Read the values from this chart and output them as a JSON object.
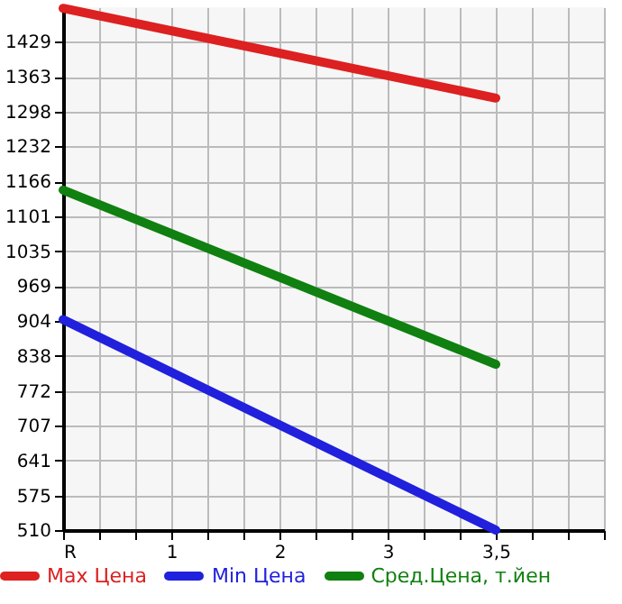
{
  "chart_data": {
    "type": "line",
    "categories": [
      "R",
      "1",
      "2",
      "3",
      "3,5"
    ],
    "series": [
      {
        "name": "Max Цена",
        "color": "#dd2020",
        "values": [
          1492,
          null,
          null,
          null,
          1323
        ]
      },
      {
        "name": "Min Цена",
        "color": "#2020dd",
        "values": [
          906,
          null,
          null,
          null,
          510
        ]
      },
      {
        "name": "Сред.Цена, т.йен",
        "color": "#108010",
        "values": [
          1150,
          null,
          null,
          null,
          822
        ]
      }
    ],
    "ylim": [
      510,
      1494
    ],
    "yticks": [
      510,
      575,
      641,
      707,
      772,
      838,
      904,
      969,
      1035,
      1101,
      1166,
      1232,
      1298,
      1363,
      1429
    ],
    "grid": true,
    "legend": "bottom",
    "marker": "none",
    "line_style": "solid"
  }
}
